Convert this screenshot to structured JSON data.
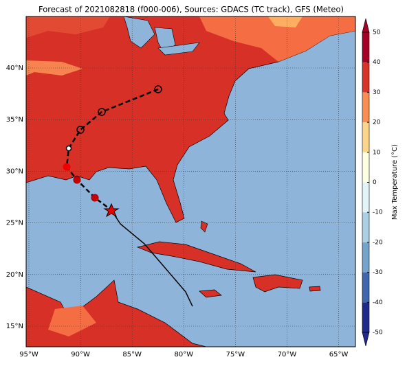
{
  "title": "Forecast of 2021082818 (f000-006), Sources: GDACS (TC track), GFS (Meteo)",
  "lon_labels": [
    "95°W",
    "90°W",
    "85°W",
    "80°W",
    "75°W",
    "70°W",
    "65°W"
  ],
  "lat_labels": [
    "40°N",
    "35°N",
    "30°N",
    "25°N",
    "20°N",
    "15°N"
  ],
  "colorbar": {
    "label": "Max Temperature (°C)",
    "lim": [
      -50,
      50
    ],
    "ticks": [
      50,
      40,
      30,
      20,
      10,
      0,
      -10,
      -20,
      -30,
      -40,
      -50
    ],
    "colors": [
      "#1f2a8a",
      "#4067ad",
      "#74a3cc",
      "#abd0e4",
      "#e3f4f8",
      "#fefee2",
      "#fdd48c",
      "#f78e52",
      "#d8352a",
      "#a50026"
    ]
  }
}
